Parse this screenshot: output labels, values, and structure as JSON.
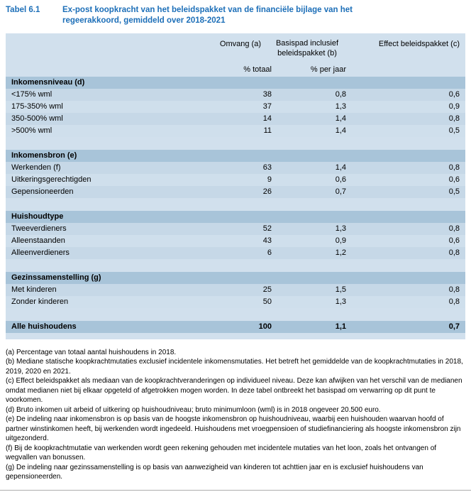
{
  "title": {
    "label": "Tabel 6.1",
    "text": "Ex-post koopkracht van het beleidspakket van de financiële bijlage van het regeerakkoord, gemiddeld over 2018-2021"
  },
  "table": {
    "headers": {
      "omvang": "Omvang (a)",
      "basispad": "Basispad inclusief beleidspakket (b)",
      "effect": "Effect beleidspakket (c)"
    },
    "units": {
      "omvang": "% totaal",
      "basispad": "% per jaar"
    },
    "sections": [
      {
        "header": "Inkomensniveau (d)",
        "rows": [
          {
            "label": "<175% wml",
            "values": [
              "38",
              "0,8",
              "0,6"
            ]
          },
          {
            "label": "175-350% wml",
            "values": [
              "37",
              "1,3",
              "0,9"
            ]
          },
          {
            "label": "350-500% wml",
            "values": [
              "14",
              "1,4",
              "0,8"
            ]
          },
          {
            "label": ">500% wml",
            "values": [
              "11",
              "1,4",
              "0,5"
            ]
          }
        ]
      },
      {
        "header": "Inkomensbron (e)",
        "rows": [
          {
            "label": "Werkenden (f)",
            "values": [
              "63",
              "1,4",
              "0,8"
            ]
          },
          {
            "label": "Uitkeringsgerechtigden",
            "values": [
              "9",
              "0,6",
              "0,6"
            ]
          },
          {
            "label": "Gepensioneerden",
            "values": [
              "26",
              "0,7",
              "0,5"
            ]
          }
        ]
      },
      {
        "header": "Huishoudtype",
        "rows": [
          {
            "label": "Tweeverdieners",
            "values": [
              "52",
              "1,3",
              "0,8"
            ]
          },
          {
            "label": "Alleenstaanden",
            "values": [
              "43",
              "0,9",
              "0,6"
            ]
          },
          {
            "label": "Alleenverdieners",
            "values": [
              "6",
              "1,2",
              "0,8"
            ]
          }
        ]
      },
      {
        "header": "Gezinssamenstelling (g)",
        "rows": [
          {
            "label": "Met kinderen",
            "values": [
              "25",
              "1,5",
              "0,8"
            ]
          },
          {
            "label": "Zonder kinderen",
            "values": [
              "50",
              "1,3",
              "0,8"
            ]
          }
        ]
      }
    ],
    "total": {
      "label": "Alle huishoudens",
      "values": [
        "100",
        "1,1",
        "0,7"
      ]
    }
  },
  "footnotes": [
    "(a) Percentage van totaal aantal huishoudens in 2018.",
    "(b) Mediane statische koopkrachtmutaties exclusief incidentele inkomensmutaties. Het betreft het gemiddelde van de koopkrachtmutaties in 2018, 2019, 2020 en 2021.",
    "(c) Effect beleidspakket als mediaan van de koopkrachtveranderingen op individueel niveau. Deze kan afwijken van het verschil van de medianen omdat medianen niet bij elkaar opgeteld of afgetrokken mogen worden. In deze tabel ontbreekt het basispad om verwarring op dit punt te voorkomen.",
    "(d) Bruto inkomen uit arbeid of uitkering op huishoudniveau; bruto minimumloon (wml) is in 2018 ongeveer 20.500 euro.",
    "(e) De indeling naar inkomensbron is op basis van de hoogste inkomensbron op huishoudniveau, waarbij een huishouden waarvan hoofd of partner winstinkomen heeft, bij werkenden wordt ingedeeld. Huishoudens met vroegpensioen of studiefinanciering als hoogste inkomensbron zijn uitgezonderd.",
    "(f) Bij de koopkrachtmutatie van werkenden wordt geen rekening gehouden met incidentele mutaties van het loon, zoals het ontvangen of wegvallen van bonussen.",
    "(g) De indeling naar gezinssamenstelling is op basis van aanwezigheid van kinderen tot achttien jaar en is exclusief huishoudens van gepensioneerden."
  ],
  "colors": {
    "accent_blue": "#1d6fb8",
    "table_background": "#d1e0ed",
    "section_band": "#a8c4d9",
    "row_stripe_dark": "#c6d8e7",
    "row_stripe_light": "#cfdfec"
  }
}
